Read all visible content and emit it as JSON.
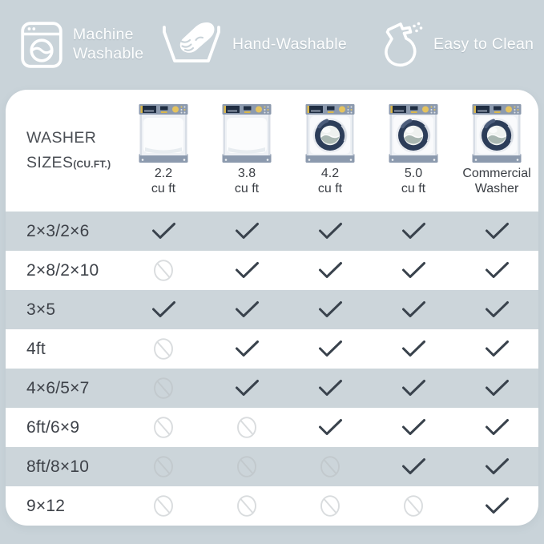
{
  "colors": {
    "page_bg": "#c9d3d9",
    "card_bg": "#ffffff",
    "stripe_bg": "#ccd5da",
    "check": "#39424c",
    "prohibited_light": "#d9dcde",
    "header_text": "#fdfefe",
    "panel_slate": "#8c9aae",
    "washer_navy": "#2c3d59",
    "washer_yellow": "#e5c35f"
  },
  "header": {
    "items": [
      {
        "icon": "washing-machine-icon",
        "label": "Machine Washable"
      },
      {
        "icon": "hand-wash-icon",
        "label": "Hand-Washable"
      },
      {
        "icon": "spray-bottle-icon",
        "label": "Easy to Clean"
      }
    ]
  },
  "table": {
    "title_line1": "WASHER",
    "title_line2": "SIZES",
    "title_suffix": "(CU.FT.)",
    "columns": [
      {
        "label_line1": "2.2",
        "label_line2": "cu ft",
        "machine": "top-loader"
      },
      {
        "label_line1": "3.8",
        "label_line2": "cu ft",
        "machine": "top-loader"
      },
      {
        "label_line1": "4.2",
        "label_line2": "cu ft",
        "machine": "front-loader"
      },
      {
        "label_line1": "5.0",
        "label_line2": "cu ft",
        "machine": "front-loader"
      },
      {
        "label_line1": "Commercial",
        "label_line2": "Washer",
        "machine": "front-loader"
      }
    ],
    "rows": [
      {
        "label": "2×3/2×6",
        "cells": [
          "check",
          "check",
          "check",
          "check",
          "check"
        ]
      },
      {
        "label": "2×8/2×10",
        "cells": [
          "no",
          "check",
          "check",
          "check",
          "check"
        ]
      },
      {
        "label": "3×5",
        "cells": [
          "check",
          "check",
          "check",
          "check",
          "check"
        ]
      },
      {
        "label": "4ft",
        "cells": [
          "no",
          "check",
          "check",
          "check",
          "check"
        ]
      },
      {
        "label": "4×6/5×7",
        "cells": [
          "no",
          "check",
          "check",
          "check",
          "check"
        ]
      },
      {
        "label": "6ft/6×9",
        "cells": [
          "no",
          "no",
          "check",
          "check",
          "check"
        ]
      },
      {
        "label": "8ft/8×10",
        "cells": [
          "no",
          "no",
          "no",
          "check",
          "check"
        ]
      },
      {
        "label": "9×12",
        "cells": [
          "no",
          "no",
          "no",
          "no",
          "check"
        ]
      }
    ],
    "cell_symbols": {
      "check": "checkmark-icon",
      "no": "prohibited-icon"
    }
  }
}
